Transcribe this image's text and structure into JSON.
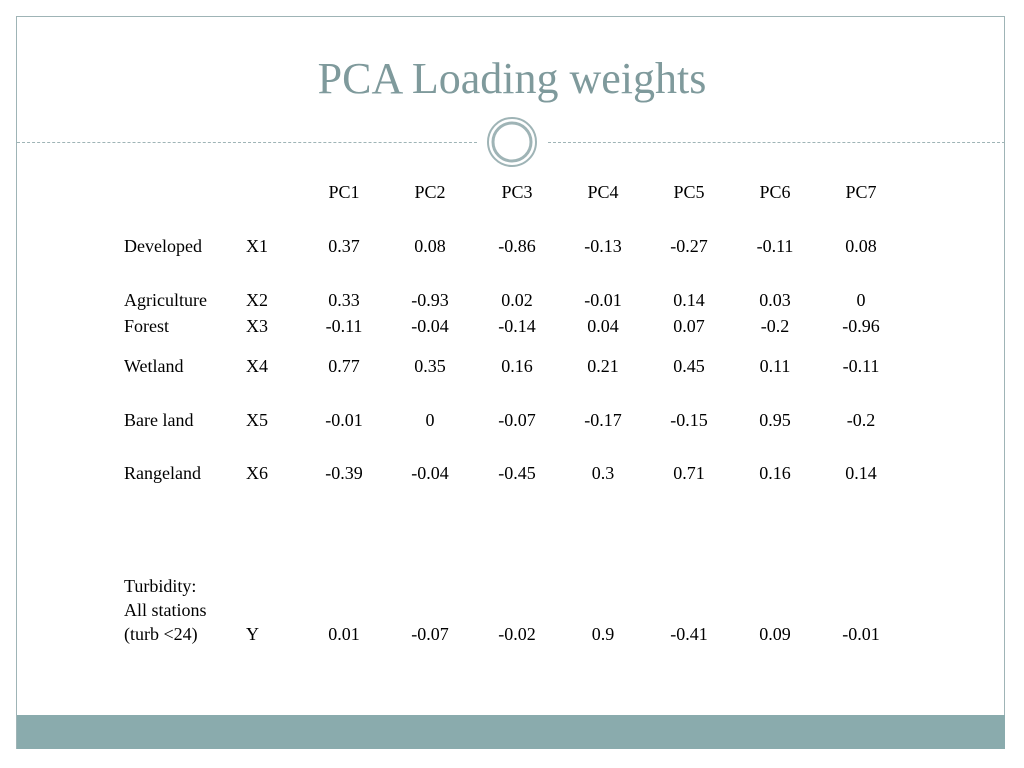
{
  "title": "PCA Loading weights",
  "colors": {
    "title": "#7f9a9c",
    "frame": "#9fb4b6",
    "band": "#8aabad"
  },
  "table": {
    "headers": [
      "PC1",
      "PC2",
      "PC3",
      "PC4",
      "PC5",
      "PC6",
      "PC7"
    ],
    "rows": [
      {
        "name": "Developed",
        "var": "X1",
        "values": [
          "0.37",
          "0.08",
          "-0.86",
          "-0.13",
          "-0.27",
          "-0.11",
          "0.08"
        ]
      },
      {
        "name": "Agriculture",
        "var": "X2",
        "values": [
          "0.33",
          "-0.93",
          "0.02",
          "-0.01",
          "0.14",
          "0.03",
          "0"
        ]
      },
      {
        "name": "Forest",
        "var": "X3",
        "values": [
          "-0.11",
          "-0.04",
          "-0.14",
          "0.04",
          "0.07",
          "-0.2",
          "-0.96"
        ]
      },
      {
        "name": "Wetland",
        "var": "X4",
        "values": [
          "0.77",
          "0.35",
          "0.16",
          "0.21",
          "0.45",
          "0.11",
          "-0.11"
        ]
      },
      {
        "name": "Bare land",
        "var": "X5",
        "values": [
          "-0.01",
          "0",
          "-0.07",
          "-0.17",
          "-0.15",
          "0.95",
          "-0.2"
        ]
      },
      {
        "name": "Rangeland",
        "var": "X6",
        "values": [
          "-0.39",
          "-0.04",
          "-0.45",
          "0.3",
          "0.71",
          "0.16",
          "0.14"
        ]
      }
    ],
    "target": {
      "name_lines": [
        "Turbidity:",
        "All stations",
        "(turb <24)"
      ],
      "var": "Y",
      "values": [
        "0.01",
        "-0.07",
        "-0.02",
        "0.9",
        "-0.41",
        "0.09",
        "-0.01"
      ]
    }
  }
}
